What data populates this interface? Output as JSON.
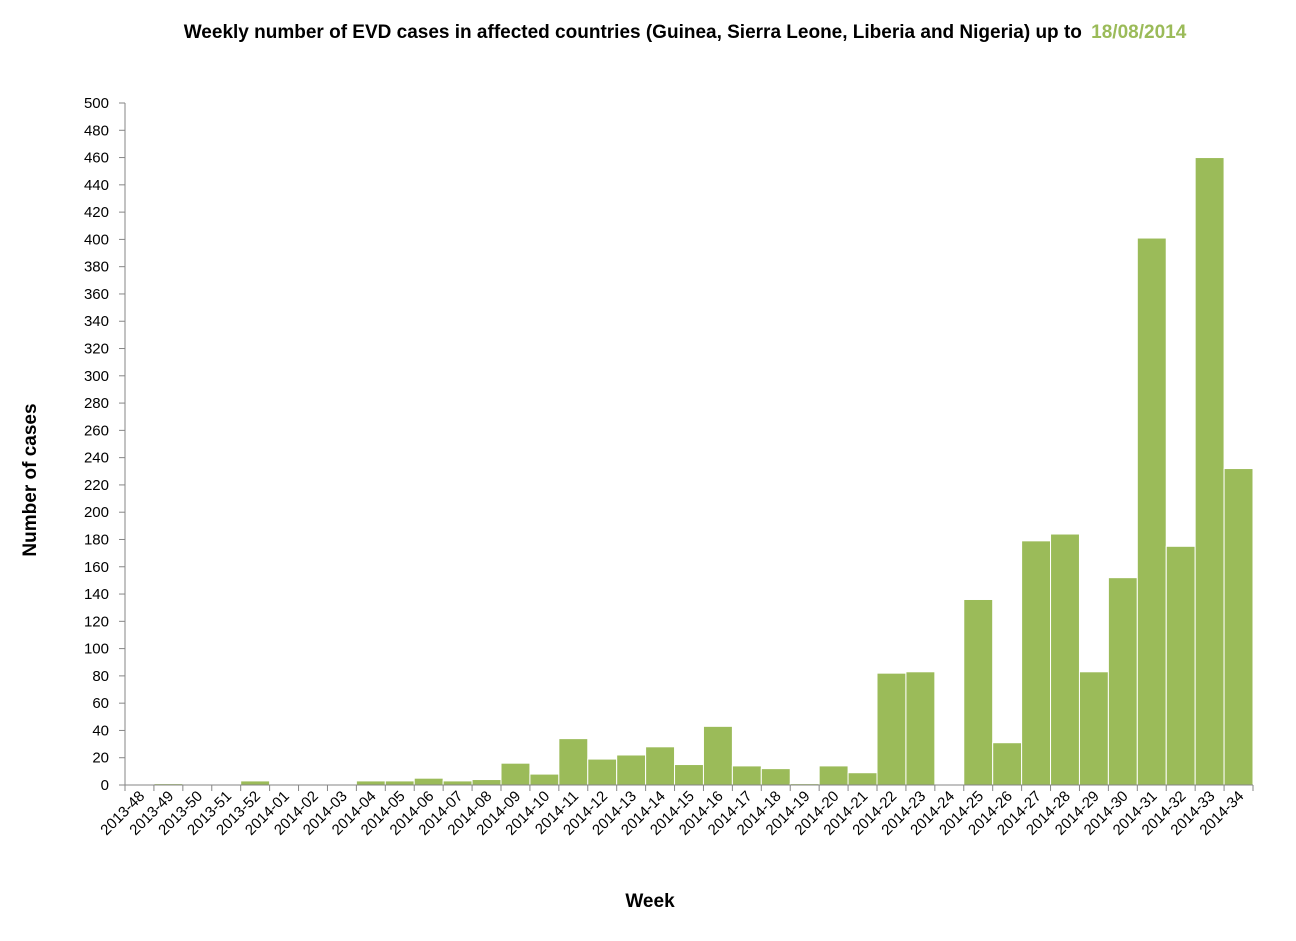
{
  "chart_data": {
    "type": "bar",
    "title": "Weekly number of EVD cases in affected countries (Guinea, Sierra Leone, Liberia and Nigeria) up to",
    "title_date": "18/08/2014",
    "xlabel": "Week",
    "ylabel": "Number of cases",
    "ylim": [
      0,
      500
    ],
    "ytick_step": 20,
    "grid": false,
    "legend": "none",
    "bar_color": "#9bbb59",
    "title_date_color": "#9bbb59",
    "categories": [
      "2013-48",
      "2013-49",
      "2013-50",
      "2013-51",
      "2013-52",
      "2014-01",
      "2014-02",
      "2014-03",
      "2014-04",
      "2014-05",
      "2014-06",
      "2014-07",
      "2014-08",
      "2014-09",
      "2014-10",
      "2014-11",
      "2014-12",
      "2014-13",
      "2014-14",
      "2014-15",
      "2014-16",
      "2014-17",
      "2014-18",
      "2014-19",
      "2014-20",
      "2014-21",
      "2014-22",
      "2014-23",
      "2014-24",
      "2014-25",
      "2014-26",
      "2014-27",
      "2014-28",
      "2014-29",
      "2014-30",
      "2014-31",
      "2014-32",
      "2014-33",
      "2014-34"
    ],
    "values": [
      0,
      1,
      0,
      0,
      3,
      0,
      0,
      0,
      3,
      3,
      5,
      3,
      4,
      16,
      8,
      34,
      19,
      22,
      28,
      15,
      43,
      14,
      12,
      1,
      14,
      9,
      82,
      83,
      0,
      136,
      31,
      179,
      184,
      83,
      152,
      401,
      175,
      460,
      232
    ]
  }
}
